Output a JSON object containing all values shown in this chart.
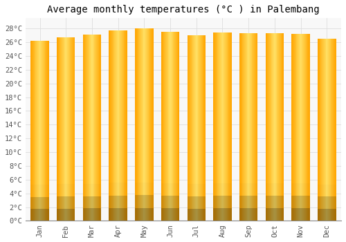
{
  "title": "Average monthly temperatures (°C ) in Palembang",
  "months": [
    "Jan",
    "Feb",
    "Mar",
    "Apr",
    "May",
    "Jun",
    "Jul",
    "Aug",
    "Sep",
    "Oct",
    "Nov",
    "Dec"
  ],
  "values": [
    26.2,
    26.7,
    27.1,
    27.7,
    28.0,
    27.5,
    27.0,
    27.4,
    27.3,
    27.3,
    27.2,
    26.5
  ],
  "ylim": [
    0,
    29.5
  ],
  "yticks": [
    0,
    2,
    4,
    6,
    8,
    10,
    12,
    14,
    16,
    18,
    20,
    22,
    24,
    26,
    28
  ],
  "ytick_labels": [
    "0°C",
    "2°C",
    "4°C",
    "6°C",
    "8°C",
    "10°C",
    "12°C",
    "14°C",
    "16°C",
    "18°C",
    "20°C",
    "22°C",
    "24°C",
    "26°C",
    "28°C"
  ],
  "bar_color_center": "#FFE066",
  "bar_color_edge": "#FFA500",
  "bar_color_bottom": "#FF8C00",
  "background_color": "#FFFFFF",
  "plot_bg_color": "#F8F8F8",
  "grid_color": "#DDDDDD",
  "title_fontsize": 10,
  "tick_fontsize": 7.5,
  "font_family": "monospace",
  "bar_width": 0.7,
  "n_slices": 30
}
